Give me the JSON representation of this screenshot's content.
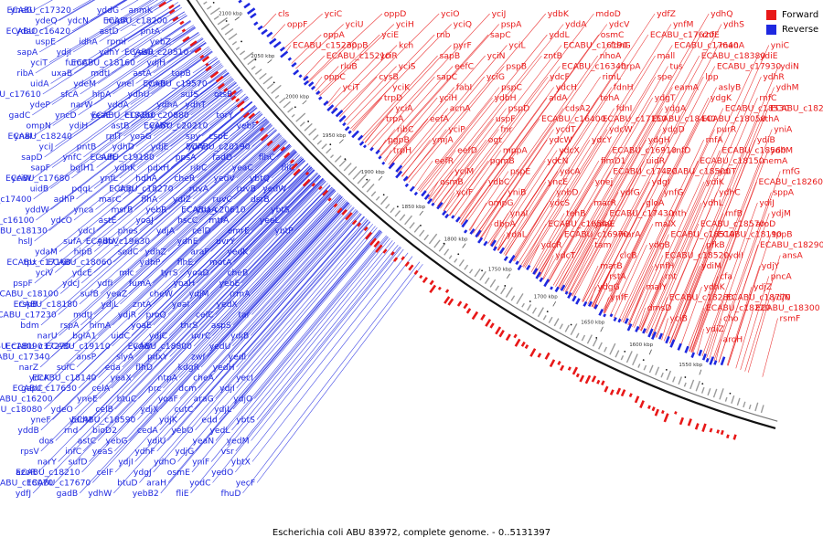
{
  "colors": {
    "forward": "#e81818",
    "reverse": "#1e28e0",
    "backbone": "#111111",
    "shade": "#888888"
  },
  "caption": "Escherichia coli ABU 83972, complete genome. - 0..5131397",
  "legend": [
    {
      "label": "Forward",
      "color": "#e81818"
    },
    {
      "label": "Reverse",
      "color": "#1e28e0"
    }
  ],
  "ticks": [
    "1550 kbp",
    "1600 kbp",
    "1650 kbp",
    "1700 kbp",
    "1750 kbp",
    "1800 kbp",
    "1850 kbp",
    "1900 kbp",
    "1950 kbp",
    "2000 kbp",
    "2050 kbp",
    "2100 kbp",
    "2150 kbp",
    "2200 kbp",
    "2250 kbp"
  ],
  "reverse_labels": [
    "yneG",
    "ydeQ",
    "ydaO",
    "uspE",
    "sapA",
    "yciT",
    "ribA",
    "uidA",
    "ECABU_c17610",
    "ydeP",
    "gadC",
    "ompN",
    "ynaI",
    "yciJ",
    "sapD",
    "sapF",
    "yciW",
    "uidB",
    "ECABU_c17400",
    "yddW",
    "ECABU_c16100",
    "ECABU_c18130",
    "hslJ",
    "ydaM",
    "tpx",
    "yciV",
    "pspF",
    "ECABU_c18100",
    "rspB",
    "ECABU_c17230",
    "bdm",
    "narU",
    "ECABU_c18090",
    "ECABU_c17340",
    "narZ",
    "ydcK",
    "gapC",
    "ECABU_c16200",
    "ECABU_c18080",
    "yneF",
    "yddB",
    "dos",
    "rpsV",
    "narY",
    "azoR",
    "ECABU_c18070",
    "ydfJ",
    "ECABU_c17320",
    "ydcN",
    "ECABU_c16420",
    "idhA",
    "ydjI",
    "fumC",
    "uxaB",
    "ydeM",
    "sfcA",
    "narW",
    "yncD",
    "ydiH",
    "ECABU_c18240",
    "pntB",
    "ynfC",
    "bglH1",
    "ECABU_c17680",
    "pqqL",
    "adhP",
    "ynca",
    "ydcO",
    "ydcI",
    "sufA",
    "hipB",
    "ECABU_c17160",
    "ydcE",
    "ydcJ",
    "sufB",
    "ECABU_c18180",
    "mdtJ",
    "rspA",
    "bglA1",
    "ECABU_c17270",
    "ansP",
    "sufC",
    "ECABU_c18140",
    "ECABU_c17630",
    "yneE",
    "ydeO",
    "yddM",
    "rnd",
    "astC",
    "infC",
    "sufD",
    "ECABU_c18210",
    "ECABU_c17670",
    "gadB",
    "yddG",
    "mipA",
    "astD",
    "rpml",
    "ydhY",
    "ECABU_c18160",
    "mdtI",
    "ynel",
    "hipA",
    "yddA",
    "yeaE",
    "astB",
    "rplT",
    "ydhD",
    "sufE",
    "ydhK",
    "ynfL",
    "dcp",
    "marC",
    "msrB",
    "astE",
    "phes",
    "ydhV",
    "sodC",
    "ECABU_c18060",
    "mlc",
    "ydfI",
    "yeaZ",
    "ydjL",
    "ydjR",
    "himA",
    "uidC",
    "ECABU_c19110",
    "slyA",
    "eda",
    "yeaX",
    "celA",
    "btuC",
    "celB",
    "ECABU_c18590",
    "bioD2",
    "yebG",
    "yeaS",
    "ydjI",
    "celF",
    "btuD",
    "ydhW",
    "anmK",
    "ECABU_c18200",
    "pntA",
    "yebZ",
    "yeaR",
    "ydjH",
    "astA",
    "yniB",
    "ydhU",
    "ydhA",
    "ECABU_c18250",
    "yebY",
    "yoaG",
    "ydjE",
    "ECABU_c19180",
    "pdxH",
    "hdhA",
    "ECABU_c18270",
    "flhA",
    "yebR",
    "yoaJ",
    "ydjA",
    "ECABU_c19630",
    "ydhZ",
    "ydhP",
    "tyrS",
    "fumA",
    "cheW",
    "zntA",
    "proQ",
    "yoaE",
    "ydjC",
    "ydiV",
    "pdxY",
    "flhD",
    "ntpA",
    "prc",
    "yoaF",
    "ydjX",
    "ydjK",
    "cedA",
    "ydiU",
    "ydhF",
    "ydhO",
    "ydgJ",
    "araH",
    "yebB2",
    "ECABU_c20510",
    "topB",
    "ECABU_c19570",
    "sufS",
    "ydhT",
    "ECABU_c20880",
    "ECABU_c20210",
    "spy",
    "ydiY",
    "ppsA",
    "ribC",
    "cheR",
    "ruvA",
    "ydiZ",
    "yoaA",
    "hscC",
    "celD",
    "ydhE",
    "araF",
    "flhE",
    "yoaD",
    "yoaH",
    "ydjM",
    "yoaI",
    "celC",
    "thrS",
    "uvrC",
    "ECABU_c18800",
    "zwf",
    "kdgR",
    "cheA",
    "dcm",
    "araG",
    "cutC",
    "edd",
    "yebO",
    "yeaN",
    "ydjG",
    "yniF",
    "osmE",
    "yodC",
    "fliE",
    "otsB",
    "torY",
    "yebF",
    "cspE",
    "ECABU_c20190",
    "fadD",
    "yeaC",
    "yedV",
    "ruvB",
    "ruvC",
    "ECABU_c20610",
    "mtfA",
    "emrE",
    "uvrY",
    "yedK",
    "motA",
    "cheB",
    "yebE",
    "rrmA",
    "yedX",
    "tar",
    "aspS",
    "ydjB",
    "yedU",
    "yedI",
    "yedH",
    "yecI",
    "ydjI",
    "ydjO",
    "ydjL",
    "ybtS",
    "yedL",
    "yedM",
    "vsr",
    "ybtX",
    "yedO",
    "yecF",
    "fhuD",
    "flhC",
    "fliC",
    "ybtQ",
    "yedW",
    "dsrB",
    "ybtS",
    "yeeL",
    "ybtP"
  ],
  "forward_labels": [
    "cls",
    "oppF",
    "ECABU_c15230",
    "yciC",
    "yciU",
    "oppA",
    "oppB",
    "ECABU_c15210",
    "rluB",
    "oppC",
    "yciT",
    "oppD",
    "yciH",
    "yciE",
    "kch",
    "yciR",
    "yciS",
    "cysB",
    "yciK",
    "trpD",
    "yciA",
    "trpA",
    "ribC",
    "pgpB",
    "trpH",
    "yciO",
    "yciQ",
    "rnb",
    "pyrF",
    "sapB",
    "eefC",
    "sapC",
    "fabI",
    "yciH",
    "acnA",
    "eefA",
    "yciP",
    "ymjA",
    "eefD",
    "eefR",
    "yciM",
    "osmB",
    "yciF",
    "yciJ",
    "pspA",
    "sapC",
    "yciL",
    "yciN",
    "pspB",
    "yciG",
    "pspC",
    "ydbH",
    "pspD",
    "uspF",
    "fnr",
    "ogt",
    "mppA",
    "pgmB",
    "pspE",
    "ydbC",
    "yniB",
    "ompG",
    "ynaI",
    "dbpA",
    "ydaL",
    "ydbK",
    "yddA",
    "yddL",
    "ECABU_c16190",
    "zntB",
    "ECABU_c16340",
    "ydcF",
    "ydcH",
    "aldA",
    "cdsA2",
    "ECABU_c16400",
    "ycdT",
    "ydcW",
    "ydcX",
    "ydcN",
    "ydcA",
    "yncE",
    "ynbD",
    "ydcS",
    "tehB",
    "ECABU_c16540",
    "ECABU_c16970",
    "ydcR",
    "ydcT",
    "mdoD",
    "ydcV",
    "osmC",
    "fdnG",
    "nhoA",
    "hrpA",
    "rimL",
    "fdnH",
    "tehA",
    "fdnI",
    "ECABU_c17150",
    "ydcW",
    "ydcY",
    "ECABU_c16910",
    "fimD1",
    "ECABU_c17420",
    "ynej",
    "ydfG",
    "marR",
    "ECABU_c17430",
    "ydeE",
    "marA",
    "tam",
    "clcB",
    "marB",
    "rstA",
    "ydgG",
    "ynfF",
    "ydfZ",
    "ynfM",
    "ECABU_c17620",
    "ECABU_c17640",
    "mall",
    "tus",
    "spe",
    "eamA",
    "ydgT",
    "ydgA",
    "ECABU_c18440",
    "ydgD",
    "ydgH",
    "rnfD",
    "uidR",
    "ECABU_c18500",
    "ydgI",
    "ynfG",
    "gloA",
    "nth",
    "malX",
    "ECABU_c18510",
    "ydgB",
    "ECABU_c18520",
    "ynfH",
    "rnt",
    "malY",
    "ECABU_c18280",
    "dmsD",
    "yciB",
    "ydhQ",
    "ydhS",
    "rnfE",
    "manA",
    "ECABU_c18380",
    "ECABU_c17930",
    "lpp",
    "aslyB",
    "ydgK",
    "ECABU_c18530",
    "ECABU_c18050",
    "purR",
    "rnfA",
    "ECABU_c18560",
    "ECABU_c18150",
    "ydiT",
    "ydiK",
    "ydhC",
    "ydhL",
    "rnfB",
    "ECABU_c18570",
    "ECABU_c18190",
    "pfkB",
    "ydiI",
    "ydiM",
    "cfa",
    "ydhK",
    "ECABU_c18770",
    "ECABU_c18220",
    "cho",
    "ydiZ",
    "aroH",
    "yniC",
    "ydiE",
    "ydiN",
    "ydhR",
    "ydhM",
    "rnfC",
    "ECABU_c18230",
    "xthA",
    "yniA",
    "ydiB",
    "ydhM",
    "nemA",
    "rnfG",
    "ECABU_c18260",
    "sppA",
    "ydiJ",
    "ydjM",
    "aroD",
    "tppB",
    "ECABU_c18290",
    "ansA",
    "ydjY",
    "pncA",
    "ydjZ",
    "ydjN",
    "ECABU_c18300",
    "rsmF"
  ]
}
